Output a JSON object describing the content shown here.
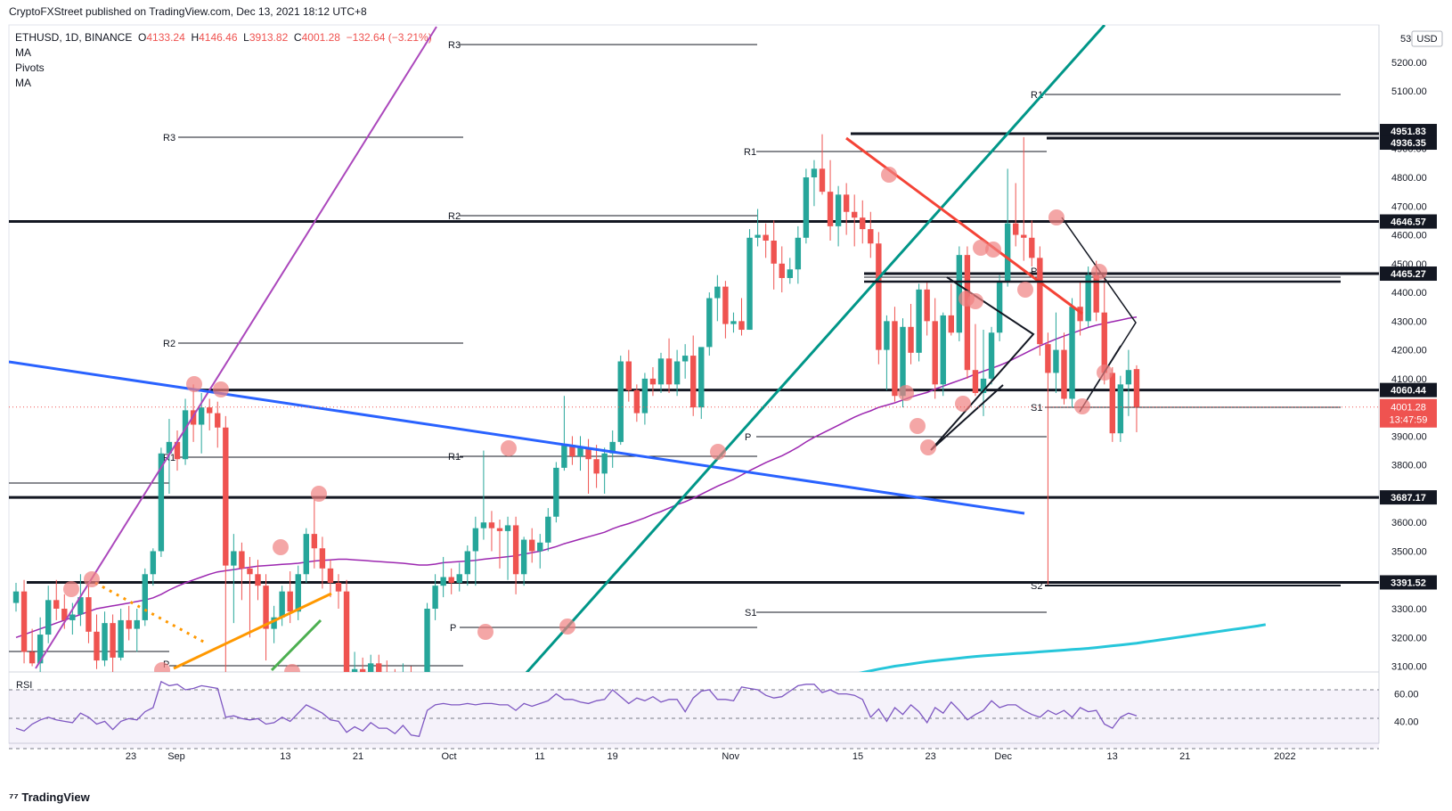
{
  "header": {
    "text": "CryptoFXStreet published on TradingView.com, Dec 13, 2021 18:12 UTC+8"
  },
  "legend": {
    "symbol": "ETHUSD, 1D, BINANCE",
    "open_label": "O",
    "open": "4133.24",
    "high_label": "H",
    "high": "4146.46",
    "low_label": "L",
    "low": "3913.82",
    "close_label": "C",
    "close": "4001.28",
    "change": "−132.64 (−3.21%)",
    "indicators": [
      "MA",
      "Pivots",
      "MA"
    ]
  },
  "footer": {
    "logo_text": "TradingView"
  },
  "price_axis": {
    "currency": "USD",
    "top_partial": "53",
    "ticks": [
      "5200.00",
      "5100.00",
      "4900.00",
      "4800.00",
      "4700.00",
      "4600.00",
      "4500.00",
      "4400.00",
      "4300.00",
      "4200.00",
      "4100.00",
      "3900.00",
      "3800.00",
      "3700.00",
      "3600.00",
      "3500.00",
      "3300.00",
      "3200.00",
      "3100.00"
    ],
    "ticks_values": [
      5200,
      5100,
      4900,
      4800,
      4700,
      4600,
      4500,
      4400,
      4300,
      4200,
      4100,
      3900,
      3800,
      3700,
      3600,
      3500,
      3300,
      3200,
      3100
    ],
    "level_labels": [
      {
        "text": "4951.83",
        "value": 4951.83
      },
      {
        "text": "4936.35",
        "value": 4936.35
      },
      {
        "text": "4646.57",
        "value": 4646.57
      },
      {
        "text": "4465.27",
        "value": 4465.27
      },
      {
        "text": "4060.44",
        "value": 4060.44
      },
      {
        "text": "3687.17",
        "value": 3687.17
      },
      {
        "text": "3391.52",
        "value": 3391.52
      }
    ],
    "last_price": {
      "text": "4001.28",
      "value": 4001.28,
      "countdown": "13:47:59"
    }
  },
  "rsi": {
    "label": "RSI",
    "ticks": [
      "60.00",
      "40.00"
    ],
    "ticks_values": [
      60,
      40
    ]
  },
  "time_axis": {
    "labels": [
      "23",
      "Sep",
      "13",
      "21",
      "Oct",
      "11",
      "19",
      "Nov",
      "15",
      "23",
      "Dec",
      "13",
      "21",
      "2022"
    ],
    "label_days": [
      -5,
      0,
      12,
      20,
      30,
      40,
      48,
      61,
      75,
      83,
      91,
      103,
      111,
      122
    ]
  },
  "chart_data": {
    "type": "candlestick",
    "symbol": "ETHUSD",
    "timeframe": "1D",
    "exchange": "BINANCE",
    "x_axis": "date (Aug 2021 – Jan 2022)",
    "ylim": [
      3080,
      5330
    ],
    "rsi_ylim": [
      24,
      76
    ],
    "horizontal_levels": [
      4951.83,
      4936.35,
      4646.57,
      4465.27,
      4060.44,
      3687.17,
      3391.52
    ],
    "last_close": 4001.28,
    "candles": [
      {
        "o": 3320,
        "h": 3390,
        "l": 3290,
        "c": 3360
      },
      {
        "o": 3360,
        "h": 3400,
        "l": 3110,
        "c": 3150
      },
      {
        "o": 3150,
        "h": 3230,
        "l": 3100,
        "c": 3110
      },
      {
        "o": 3110,
        "h": 3270,
        "l": 3080,
        "c": 3210
      },
      {
        "o": 3210,
        "h": 3380,
        "l": 3180,
        "c": 3330
      },
      {
        "o": 3330,
        "h": 3400,
        "l": 3260,
        "c": 3300
      },
      {
        "o": 3300,
        "h": 3350,
        "l": 3230,
        "c": 3260
      },
      {
        "o": 3260,
        "h": 3320,
        "l": 3210,
        "c": 3280
      },
      {
        "o": 3280,
        "h": 3420,
        "l": 3240,
        "c": 3340
      },
      {
        "o": 3340,
        "h": 3380,
        "l": 3180,
        "c": 3220
      },
      {
        "o": 3220,
        "h": 3280,
        "l": 3090,
        "c": 3120
      },
      {
        "o": 3120,
        "h": 3290,
        "l": 3100,
        "c": 3250
      },
      {
        "o": 3250,
        "h": 3280,
        "l": 3080,
        "c": 3130
      },
      {
        "o": 3130,
        "h": 3300,
        "l": 3120,
        "c": 3260
      },
      {
        "o": 3260,
        "h": 3310,
        "l": 3190,
        "c": 3230
      },
      {
        "o": 3230,
        "h": 3300,
        "l": 3150,
        "c": 3260
      },
      {
        "o": 3260,
        "h": 3440,
        "l": 3240,
        "c": 3420
      },
      {
        "o": 3420,
        "h": 3510,
        "l": 3380,
        "c": 3500
      },
      {
        "o": 3500,
        "h": 3860,
        "l": 3480,
        "c": 3840
      },
      {
        "o": 3840,
        "h": 3960,
        "l": 3700,
        "c": 3880
      },
      {
        "o": 3880,
        "h": 3920,
        "l": 3780,
        "c": 3820
      },
      {
        "o": 3820,
        "h": 4030,
        "l": 3800,
        "c": 3990
      },
      {
        "o": 3990,
        "h": 4080,
        "l": 3880,
        "c": 3940
      },
      {
        "o": 3940,
        "h": 4050,
        "l": 3840,
        "c": 4000
      },
      {
        "o": 4000,
        "h": 4030,
        "l": 3920,
        "c": 3980
      },
      {
        "o": 3980,
        "h": 4020,
        "l": 3860,
        "c": 3930
      },
      {
        "o": 3930,
        "h": 3970,
        "l": 3050,
        "c": 3450
      },
      {
        "o": 3450,
        "h": 3560,
        "l": 3250,
        "c": 3500
      },
      {
        "o": 3500,
        "h": 3530,
        "l": 3330,
        "c": 3440
      },
      {
        "o": 3440,
        "h": 3480,
        "l": 3200,
        "c": 3420
      },
      {
        "o": 3420,
        "h": 3470,
        "l": 3330,
        "c": 3380
      },
      {
        "o": 3380,
        "h": 3420,
        "l": 3120,
        "c": 3230
      },
      {
        "o": 3230,
        "h": 3310,
        "l": 3180,
        "c": 3270
      },
      {
        "o": 3270,
        "h": 3380,
        "l": 3240,
        "c": 3360
      },
      {
        "o": 3360,
        "h": 3430,
        "l": 3250,
        "c": 3290
      },
      {
        "o": 3290,
        "h": 3450,
        "l": 3260,
        "c": 3420
      },
      {
        "o": 3420,
        "h": 3580,
        "l": 3390,
        "c": 3560
      },
      {
        "o": 3560,
        "h": 3680,
        "l": 3440,
        "c": 3510
      },
      {
        "o": 3510,
        "h": 3550,
        "l": 3370,
        "c": 3440
      },
      {
        "o": 3440,
        "h": 3470,
        "l": 3340,
        "c": 3390
      },
      {
        "o": 3390,
        "h": 3420,
        "l": 3300,
        "c": 3360
      },
      {
        "o": 3360,
        "h": 3400,
        "l": 2990,
        "c": 3020
      },
      {
        "o": 3020,
        "h": 3150,
        "l": 2980,
        "c": 3090
      },
      {
        "o": 3090,
        "h": 3130,
        "l": 3000,
        "c": 3050
      },
      {
        "o": 3050,
        "h": 3140,
        "l": 3020,
        "c": 3110
      },
      {
        "o": 3110,
        "h": 3140,
        "l": 3020,
        "c": 3060
      },
      {
        "o": 3060,
        "h": 3120,
        "l": 3010,
        "c": 3050
      },
      {
        "o": 3050,
        "h": 3090,
        "l": 2960,
        "c": 3000
      },
      {
        "o": 3000,
        "h": 3110,
        "l": 2980,
        "c": 3080
      },
      {
        "o": 3080,
        "h": 3100,
        "l": 2930,
        "c": 2960
      },
      {
        "o": 2960,
        "h": 3010,
        "l": 2870,
        "c": 2990
      },
      {
        "o": 2990,
        "h": 3320,
        "l": 2980,
        "c": 3300
      },
      {
        "o": 3300,
        "h": 3420,
        "l": 3260,
        "c": 3380
      },
      {
        "o": 3380,
        "h": 3480,
        "l": 3340,
        "c": 3410
      },
      {
        "o": 3410,
        "h": 3440,
        "l": 3350,
        "c": 3390
      },
      {
        "o": 3390,
        "h": 3460,
        "l": 3360,
        "c": 3420
      },
      {
        "o": 3420,
        "h": 3520,
        "l": 3380,
        "c": 3500
      },
      {
        "o": 3500,
        "h": 3620,
        "l": 3380,
        "c": 3580
      },
      {
        "o": 3580,
        "h": 3850,
        "l": 3540,
        "c": 3600
      },
      {
        "o": 3600,
        "h": 3640,
        "l": 3500,
        "c": 3580
      },
      {
        "o": 3580,
        "h": 3610,
        "l": 3440,
        "c": 3570
      },
      {
        "o": 3570,
        "h": 3620,
        "l": 3400,
        "c": 3590
      },
      {
        "o": 3590,
        "h": 3620,
        "l": 3350,
        "c": 3420
      },
      {
        "o": 3420,
        "h": 3550,
        "l": 3380,
        "c": 3540
      },
      {
        "o": 3540,
        "h": 3580,
        "l": 3460,
        "c": 3500
      },
      {
        "o": 3500,
        "h": 3560,
        "l": 3440,
        "c": 3530
      },
      {
        "o": 3530,
        "h": 3650,
        "l": 3500,
        "c": 3620
      },
      {
        "o": 3620,
        "h": 3810,
        "l": 3600,
        "c": 3790
      },
      {
        "o": 3790,
        "h": 4040,
        "l": 3780,
        "c": 3870
      },
      {
        "o": 3870,
        "h": 3900,
        "l": 3800,
        "c": 3830
      },
      {
        "o": 3830,
        "h": 3900,
        "l": 3780,
        "c": 3860
      },
      {
        "o": 3860,
        "h": 3890,
        "l": 3700,
        "c": 3820
      },
      {
        "o": 3820,
        "h": 3870,
        "l": 3720,
        "c": 3770
      },
      {
        "o": 3770,
        "h": 3860,
        "l": 3700,
        "c": 3840
      },
      {
        "o": 3840,
        "h": 3920,
        "l": 3790,
        "c": 3880
      },
      {
        "o": 3880,
        "h": 4180,
        "l": 3870,
        "c": 4160
      },
      {
        "o": 4160,
        "h": 4200,
        "l": 4020,
        "c": 4060
      },
      {
        "o": 4060,
        "h": 4080,
        "l": 3950,
        "c": 3980
      },
      {
        "o": 3980,
        "h": 4120,
        "l": 3940,
        "c": 4100
      },
      {
        "o": 4100,
        "h": 4140,
        "l": 4040,
        "c": 4080
      },
      {
        "o": 4080,
        "h": 4190,
        "l": 4050,
        "c": 4170
      },
      {
        "o": 4170,
        "h": 4240,
        "l": 4050,
        "c": 4080
      },
      {
        "o": 4080,
        "h": 4200,
        "l": 4040,
        "c": 4160
      },
      {
        "o": 4160,
        "h": 4220,
        "l": 4100,
        "c": 4180
      },
      {
        "o": 4180,
        "h": 4250,
        "l": 3970,
        "c": 4000
      },
      {
        "o": 4000,
        "h": 4200,
        "l": 3960,
        "c": 4210
      },
      {
        "o": 4210,
        "h": 4400,
        "l": 4180,
        "c": 4380
      },
      {
        "o": 4380,
        "h": 4460,
        "l": 4300,
        "c": 4420
      },
      {
        "o": 4420,
        "h": 4440,
        "l": 4240,
        "c": 4290
      },
      {
        "o": 4290,
        "h": 4330,
        "l": 4260,
        "c": 4300
      },
      {
        "o": 4300,
        "h": 4380,
        "l": 4250,
        "c": 4270
      },
      {
        "o": 4270,
        "h": 4620,
        "l": 4270,
        "c": 4590
      },
      {
        "o": 4590,
        "h": 4690,
        "l": 4560,
        "c": 4600
      },
      {
        "o": 4600,
        "h": 4640,
        "l": 4520,
        "c": 4580
      },
      {
        "o": 4580,
        "h": 4650,
        "l": 4410,
        "c": 4500
      },
      {
        "o": 4500,
        "h": 4560,
        "l": 4400,
        "c": 4450
      },
      {
        "o": 4450,
        "h": 4520,
        "l": 4430,
        "c": 4480
      },
      {
        "o": 4480,
        "h": 4630,
        "l": 4430,
        "c": 4590
      },
      {
        "o": 4590,
        "h": 4830,
        "l": 4570,
        "c": 4800
      },
      {
        "o": 4800,
        "h": 4860,
        "l": 4700,
        "c": 4830
      },
      {
        "o": 4830,
        "h": 4950,
        "l": 4740,
        "c": 4750
      },
      {
        "o": 4750,
        "h": 4860,
        "l": 4580,
        "c": 4630
      },
      {
        "o": 4630,
        "h": 4770,
        "l": 4560,
        "c": 4740
      },
      {
        "o": 4740,
        "h": 4780,
        "l": 4600,
        "c": 4680
      },
      {
        "o": 4680,
        "h": 4740,
        "l": 4560,
        "c": 4660
      },
      {
        "o": 4660,
        "h": 4720,
        "l": 4570,
        "c": 4620
      },
      {
        "o": 4620,
        "h": 4680,
        "l": 4520,
        "c": 4570
      },
      {
        "o": 4570,
        "h": 4610,
        "l": 4150,
        "c": 4200
      },
      {
        "o": 4200,
        "h": 4320,
        "l": 4060,
        "c": 4300
      },
      {
        "o": 4300,
        "h": 4350,
        "l": 4020,
        "c": 4040
      },
      {
        "o": 4040,
        "h": 4310,
        "l": 4000,
        "c": 4280
      },
      {
        "o": 4280,
        "h": 4360,
        "l": 4150,
        "c": 4190
      },
      {
        "o": 4190,
        "h": 4430,
        "l": 4160,
        "c": 4410
      },
      {
        "o": 4410,
        "h": 4440,
        "l": 4250,
        "c": 4300
      },
      {
        "o": 4300,
        "h": 4380,
        "l": 4030,
        "c": 4080
      },
      {
        "o": 4080,
        "h": 4330,
        "l": 4040,
        "c": 4320
      },
      {
        "o": 4320,
        "h": 4430,
        "l": 4250,
        "c": 4260
      },
      {
        "o": 4260,
        "h": 4560,
        "l": 4230,
        "c": 4530
      },
      {
        "o": 4530,
        "h": 4560,
        "l": 4100,
        "c": 4130
      },
      {
        "o": 4130,
        "h": 4290,
        "l": 4040,
        "c": 4050
      },
      {
        "o": 4050,
        "h": 4270,
        "l": 3970,
        "c": 4100
      },
      {
        "o": 4100,
        "h": 4280,
        "l": 4080,
        "c": 4260
      },
      {
        "o": 4260,
        "h": 4460,
        "l": 4230,
        "c": 4440
      },
      {
        "o": 4440,
        "h": 4830,
        "l": 4420,
        "c": 4640
      },
      {
        "o": 4640,
        "h": 4780,
        "l": 4560,
        "c": 4600
      },
      {
        "o": 4600,
        "h": 4940,
        "l": 4510,
        "c": 4590
      },
      {
        "o": 4590,
        "h": 4650,
        "l": 4490,
        "c": 4520
      },
      {
        "o": 4520,
        "h": 4560,
        "l": 4180,
        "c": 4220
      },
      {
        "o": 4220,
        "h": 4260,
        "l": 3380,
        "c": 4120
      },
      {
        "o": 4120,
        "h": 4330,
        "l": 4050,
        "c": 4200
      },
      {
        "o": 4200,
        "h": 4260,
        "l": 4010,
        "c": 4030
      },
      {
        "o": 4030,
        "h": 4380,
        "l": 4000,
        "c": 4350
      },
      {
        "o": 4350,
        "h": 4440,
        "l": 4250,
        "c": 4300
      },
      {
        "o": 4300,
        "h": 4490,
        "l": 4280,
        "c": 4460
      },
      {
        "o": 4460,
        "h": 4510,
        "l": 4300,
        "c": 4330
      },
      {
        "o": 4330,
        "h": 4460,
        "l": 4080,
        "c": 4120
      },
      {
        "o": 4120,
        "h": 4140,
        "l": 3880,
        "c": 3910
      },
      {
        "o": 3910,
        "h": 4110,
        "l": 3880,
        "c": 4080
      },
      {
        "o": 4080,
        "h": 4200,
        "l": 3970,
        "c": 4130
      },
      {
        "o": 4133.24,
        "h": 4146.46,
        "l": 3913.82,
        "c": 4001.28
      }
    ],
    "rsi_series": [
      35,
      33,
      38,
      41,
      43,
      41,
      40,
      39,
      46,
      43,
      38,
      40,
      34,
      40,
      42,
      41,
      47,
      50,
      69,
      66,
      67,
      63,
      64,
      66,
      65,
      64,
      43,
      44,
      42,
      41,
      42,
      38,
      39,
      43,
      40,
      46,
      52,
      49,
      46,
      41,
      40,
      32,
      36,
      33,
      39,
      35,
      35,
      31,
      37,
      30,
      29,
      48,
      52,
      53,
      52,
      52,
      53,
      52,
      53,
      53,
      52,
      52,
      48,
      53,
      51,
      53,
      55,
      60,
      56,
      56,
      54,
      53,
      55,
      56,
      63,
      58,
      53,
      57,
      55,
      58,
      54,
      56,
      56,
      47,
      57,
      62,
      63,
      56,
      56,
      55,
      65,
      64,
      63,
      59,
      57,
      58,
      62,
      66,
      67,
      67,
      61,
      63,
      60,
      60,
      59,
      56,
      43,
      49,
      40,
      50,
      45,
      52,
      47,
      39,
      50,
      46,
      54,
      48,
      41,
      45,
      48,
      55,
      50,
      52,
      52,
      48,
      45,
      43,
      48,
      45,
      48,
      43,
      50,
      47,
      48,
      38,
      35,
      43,
      46,
      44
    ],
    "ma50_series": [
      3200,
      3210,
      3220,
      3230,
      3240,
      3250,
      3260,
      3270,
      3280,
      3290,
      3300,
      3305,
      3310,
      3315,
      3320,
      3325,
      3330,
      3338,
      3350,
      3365,
      3378,
      3390,
      3400,
      3410,
      3420,
      3428,
      3432,
      3436,
      3440,
      3444,
      3448,
      3450,
      3452,
      3454,
      3456,
      3458,
      3462,
      3466,
      3468,
      3470,
      3472,
      3472,
      3470,
      3468,
      3466,
      3464,
      3462,
      3460,
      3458,
      3455,
      3452,
      3452,
      3455,
      3460,
      3462,
      3464,
      3466,
      3468,
      3472,
      3475,
      3478,
      3481,
      3484,
      3490,
      3495,
      3500,
      3508,
      3516,
      3526,
      3534,
      3542,
      3550,
      3558,
      3566,
      3578,
      3588,
      3596,
      3606,
      3616,
      3628,
      3638,
      3650,
      3662,
      3672,
      3684,
      3698,
      3712,
      3726,
      3738,
      3750,
      3765,
      3780,
      3794,
      3808,
      3820,
      3832,
      3846,
      3862,
      3880,
      3896,
      3910,
      3924,
      3938,
      3952,
      3966,
      3978,
      3988,
      4000,
      4008,
      4016,
      4026,
      4036,
      4044,
      4052,
      4064,
      4074,
      4084,
      4094,
      4104,
      4116,
      4126,
      4136,
      4146,
      4158,
      4172,
      4186,
      4200,
      4214,
      4226,
      4238,
      4248,
      4258,
      4268,
      4278,
      4286,
      4292,
      4298,
      4304,
      4310,
      4314
    ],
    "ma200_series": [
      3040,
      3045,
      3050,
      3055,
      3060,
      3066,
      3072,
      3078,
      3084,
      3090,
      3095,
      3100,
      3104,
      3108,
      3112,
      3116,
      3119,
      3122,
      3125,
      3128,
      3131,
      3134,
      3136,
      3138,
      3140,
      3142,
      3144,
      3146,
      3148,
      3150,
      3152,
      3154,
      3156,
      3158,
      3160,
      3162,
      3165,
      3168,
      3171,
      3174,
      3177,
      3180,
      3184,
      3188,
      3192,
      3196,
      3200,
      3204,
      3208,
      3212,
      3216,
      3220,
      3224,
      3228,
      3232,
      3236,
      3240,
      3245
    ]
  }
}
